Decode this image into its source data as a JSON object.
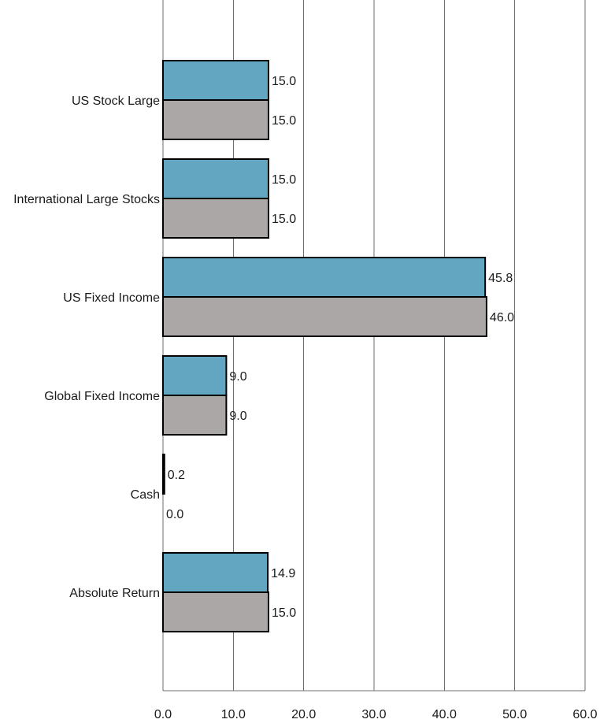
{
  "chart_data": {
    "type": "bar",
    "orientation": "horizontal",
    "title": "",
    "xlabel": "",
    "ylabel": "",
    "xlim": [
      0,
      60
    ],
    "x_ticks": [
      "0.0",
      "10.0",
      "20.0",
      "30.0",
      "40.0",
      "50.0",
      "60.0"
    ],
    "categories": [
      "US Stock Large",
      "International Large Stocks",
      "US Fixed Income",
      "Global Fixed Income",
      "Cash",
      "Absolute Return"
    ],
    "series": [
      {
        "values": [
          15.0,
          15.0,
          45.8,
          9.0,
          0.2,
          14.9
        ],
        "labels": [
          "15.0",
          "15.0",
          "45.8",
          "9.0",
          "0.2",
          "14.9"
        ],
        "color": "#62a6c2"
      },
      {
        "values": [
          15.0,
          15.0,
          46.0,
          9.0,
          0.0,
          15.0
        ],
        "labels": [
          "15.0",
          "15.0",
          "46.0",
          "9.0",
          "0.0",
          "15.0"
        ],
        "color": "#aba7a7"
      }
    ],
    "grid": true,
    "legend": "none"
  }
}
